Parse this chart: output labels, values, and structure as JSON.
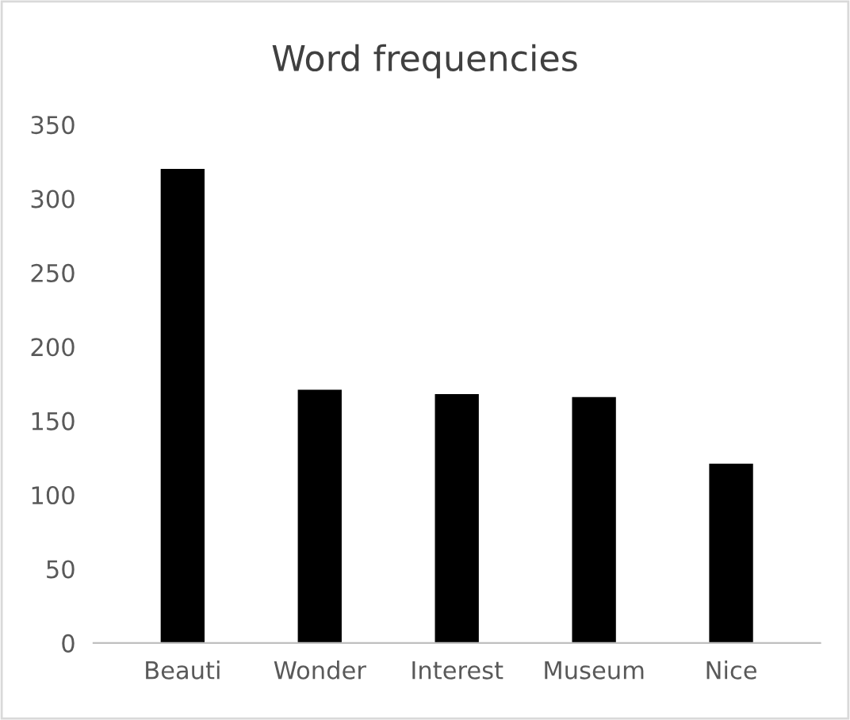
{
  "chart_data": {
    "type": "bar",
    "title": "Word frequencies",
    "categories": [
      "Beauti",
      "Wonder",
      "Interest",
      "Museum",
      "Nice"
    ],
    "values": [
      320,
      171,
      168,
      166,
      121
    ],
    "color": "#000000",
    "ylim": [
      0,
      350
    ],
    "yticks": [
      0,
      50,
      100,
      150,
      200,
      250,
      300,
      350
    ],
    "grid": false
  }
}
